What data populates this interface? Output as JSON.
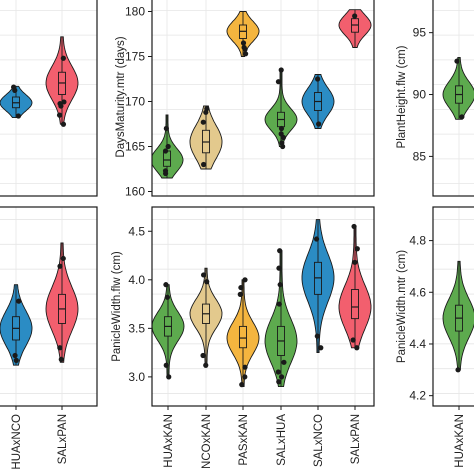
{
  "chart_data": [
    {
      "type": "violin",
      "ylabel": "",
      "ylim": [
        2.7,
        4.75
      ],
      "yticks": [],
      "categories": [
        "HUAxNCO",
        "SALxPAN"
      ],
      "x_tick_labels": [
        "HUAxNCO",
        "SALxPAN"
      ],
      "violins": [
        {
          "category": "HUAxNCO",
          "color": "#2B8CC4",
          "min": 3.12,
          "q1": 3.38,
          "median": 3.5,
          "q3": 3.62,
          "max": 3.95,
          "points": [
            3.17,
            3.22,
            3.78
          ]
        },
        {
          "category": "SALxPAN",
          "color": "#F25F6E",
          "min": 3.15,
          "q1": 3.55,
          "median": 3.7,
          "q3": 3.85,
          "max": 4.38,
          "points": [
            3.18,
            3.3,
            4.14,
            4.22
          ]
        }
      ]
    },
    {
      "type": "violin",
      "ylabel": "",
      "ylim": [
        157.5,
        181.5
      ],
      "yticks": [],
      "categories": [
        "HUAxNCO",
        "SALxPAN"
      ],
      "x_tick_labels": [],
      "violins": [
        {
          "category": "HUAxNCO",
          "color": "#2B8CC4",
          "min": 167.0,
          "q1": 168.2,
          "median": 168.8,
          "q3": 169.5,
          "max": 170.8,
          "points": [
            167.2,
            170.3,
            170.7
          ]
        },
        {
          "category": "SALxPAN",
          "color": "#F25F6E",
          "min": 166.2,
          "q1": 169.8,
          "median": 171.2,
          "q3": 172.5,
          "max": 176.8,
          "points": [
            166.2,
            167.3,
            168.4,
            168.7,
            168.9,
            174.2
          ]
        }
      ]
    },
    {
      "type": "violin",
      "ylabel": "DaysMaturity.mtr (days)",
      "ylim": [
        159.5,
        181.5
      ],
      "yticks": [
        160,
        165,
        170,
        175,
        180
      ],
      "categories": [
        "HUAxKAN",
        "NCOxKAN",
        "PASxKAN",
        "SALxHUA",
        "SALxNCO",
        "SALxPAN"
      ],
      "x_tick_labels": [],
      "violins": [
        {
          "category": "HUAxKAN",
          "color": "#5DAA4E",
          "min": 161.5,
          "q1": 162.8,
          "median": 163.5,
          "q3": 164.5,
          "max": 168.5,
          "points": [
            162.0,
            162.3,
            164.5,
            165.0,
            167.0
          ]
        },
        {
          "category": "NCOxKAN",
          "color": "#E3C98D",
          "min": 162.5,
          "q1": 164.3,
          "median": 165.5,
          "q3": 166.8,
          "max": 169.5,
          "points": [
            163.0,
            167.7,
            168.8,
            169.2
          ]
        },
        {
          "category": "PASxKAN",
          "color": "#F4B53F",
          "min": 175.0,
          "q1": 177.0,
          "median": 177.8,
          "q3": 178.5,
          "max": 180.0,
          "points": [
            175.3,
            175.8,
            176.0,
            176.5
          ]
        },
        {
          "category": "SALxHUA",
          "color": "#5DAA4E",
          "min": 165.0,
          "q1": 167.2,
          "median": 168.0,
          "q3": 168.8,
          "max": 173.5,
          "points": [
            165.0,
            165.4,
            166.0,
            166.4,
            167.0,
            172.2,
            173.5
          ]
        },
        {
          "category": "SALxNCO",
          "color": "#2B8CC4",
          "min": 167.0,
          "q1": 169.0,
          "median": 170.0,
          "q3": 171.0,
          "max": 173.0,
          "points": [
            167.5,
            172.5
          ]
        },
        {
          "category": "SALxPAN",
          "color": "#F25F6E",
          "min": 176.0,
          "q1": 177.7,
          "median": 178.5,
          "q3": 179.2,
          "max": 180.2,
          "points": [
            179.5
          ]
        }
      ]
    },
    {
      "type": "violin",
      "ylabel": "PanicleWidth.flw (cm)",
      "ylim": [
        2.7,
        4.75
      ],
      "yticks": [
        3.0,
        3.5,
        4.0,
        4.5
      ],
      "categories": [
        "HUAxKAN",
        "NCOxKAN",
        "PASxKAN",
        "SALxHUA",
        "SALxNCO",
        "SALxPAN"
      ],
      "x_tick_labels": [
        "HUAxKAN",
        "NCOxKAN",
        "PASxKAN",
        "SALxHUA",
        "SALxNCO",
        "SALxPAN"
      ],
      "violins": [
        {
          "category": "HUAxKAN",
          "color": "#5DAA4E",
          "min": 3.0,
          "q1": 3.42,
          "median": 3.52,
          "q3": 3.62,
          "max": 3.95,
          "points": [
            3.0,
            3.12,
            3.82,
            3.95
          ]
        },
        {
          "category": "NCOxKAN",
          "color": "#E3C98D",
          "min": 3.1,
          "q1": 3.55,
          "median": 3.65,
          "q3": 3.75,
          "max": 4.12,
          "points": [
            3.12,
            3.22,
            3.98,
            4.05
          ]
        },
        {
          "category": "PASxKAN",
          "color": "#F4B53F",
          "min": 2.9,
          "q1": 3.3,
          "median": 3.4,
          "q3": 3.52,
          "max": 4.0,
          "points": [
            2.92,
            3.0,
            3.1,
            3.85,
            3.92,
            4.0
          ]
        },
        {
          "category": "SALxHUA",
          "color": "#5DAA4E",
          "min": 2.9,
          "q1": 3.22,
          "median": 3.37,
          "q3": 3.52,
          "max": 4.3,
          "points": [
            2.95,
            3.0,
            3.05,
            3.15,
            3.75,
            3.95,
            4.12,
            4.3
          ]
        },
        {
          "category": "SALxNCO",
          "color": "#2B8CC4",
          "min": 3.25,
          "q1": 3.85,
          "median": 4.02,
          "q3": 4.18,
          "max": 4.62,
          "points": [
            3.3,
            3.42,
            4.42
          ]
        },
        {
          "category": "SALxPAN",
          "color": "#F25F6E",
          "min": 3.3,
          "q1": 3.6,
          "median": 3.72,
          "q3": 3.9,
          "max": 4.55,
          "points": [
            3.3,
            3.38,
            4.18,
            4.32,
            4.55
          ]
        }
      ]
    },
    {
      "type": "violin",
      "ylabel": "PlantHeight.flw (cm)",
      "ylim": [
        81.8,
        97.8
      ],
      "yticks": [
        85,
        90,
        95
      ],
      "categories": [
        "HUAxKAN"
      ],
      "x_tick_labels": [],
      "violins": [
        {
          "category": "HUAxKAN",
          "color": "#5DAA4E",
          "min": 88.0,
          "q1": 89.3,
          "median": 90.0,
          "q3": 90.7,
          "max": 93.0,
          "points": [
            88.2,
            92.7
          ]
        }
      ]
    },
    {
      "type": "violin",
      "ylabel": "PanicleWidth.mtr (cm)",
      "ylim": [
        4.16,
        4.93
      ],
      "yticks": [
        4.2,
        4.4,
        4.6,
        4.8
      ],
      "categories": [
        "HUAxKAN",
        "NCOxKAN"
      ],
      "x_tick_labels": [
        "HUAxKAN",
        "NCO"
      ],
      "violins": [
        {
          "category": "HUAxKAN",
          "color": "#5DAA4E",
          "min": 4.3,
          "q1": 4.45,
          "median": 4.5,
          "q3": 4.55,
          "max": 4.72,
          "points": [
            4.3
          ]
        }
      ]
    }
  ]
}
